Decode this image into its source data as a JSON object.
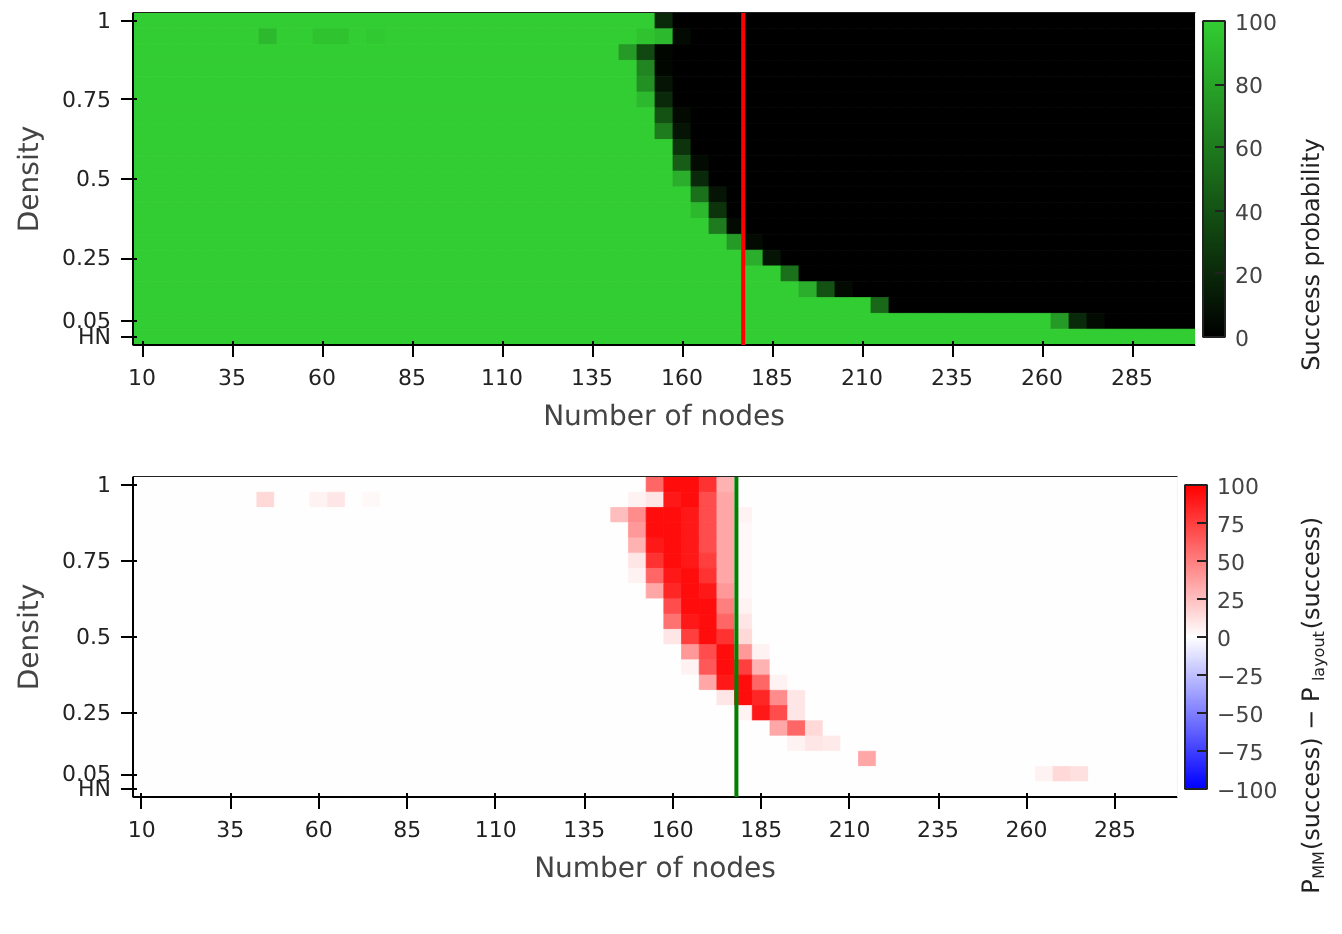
{
  "chart_data": [
    {
      "type": "heatmap",
      "xlabel": "Number of nodes",
      "ylabel": "Density",
      "clabel": "Success probability",
      "clim": [
        0,
        100
      ],
      "cticks": [
        0,
        20,
        40,
        60,
        80,
        100
      ],
      "colors": [
        "#000000",
        "#32cd32"
      ],
      "x": [
        10,
        15,
        20,
        25,
        30,
        35,
        40,
        45,
        50,
        55,
        60,
        65,
        70,
        75,
        80,
        85,
        90,
        95,
        100,
        105,
        110,
        115,
        120,
        125,
        130,
        135,
        140,
        145,
        150,
        155,
        160,
        165,
        170,
        175,
        180,
        185,
        190,
        195,
        200,
        205,
        210,
        215,
        220,
        225,
        230,
        235,
        240,
        245,
        250,
        255,
        260,
        265,
        270,
        275,
        280,
        285,
        290,
        295,
        300
      ],
      "xlim": [
        7.5,
        302.5
      ],
      "xticks": [
        10,
        35,
        60,
        85,
        110,
        135,
        160,
        185,
        210,
        235,
        260,
        285
      ],
      "y_categories": [
        "1",
        null,
        null,
        null,
        null,
        "0.75",
        null,
        null,
        null,
        null,
        "0.5",
        null,
        null,
        null,
        null,
        "0.25",
        null,
        null,
        null,
        "0.05",
        "HN"
      ],
      "ref_lines": [
        {
          "axis": "x",
          "value": 177,
          "color": "#ff0000"
        }
      ],
      "cells": [
        [
          100,
          100,
          100,
          100,
          100,
          100,
          100,
          100,
          100,
          100,
          100,
          100,
          100,
          100,
          100,
          100,
          100,
          100,
          100,
          100,
          100,
          100,
          100,
          100,
          100,
          100,
          100,
          100,
          100,
          20,
          0,
          0,
          0,
          0,
          0,
          0,
          0,
          0,
          0,
          0,
          0,
          0,
          0,
          0,
          0,
          0,
          0,
          0,
          0,
          0,
          0,
          0,
          0,
          0,
          0,
          0,
          0,
          0,
          0
        ],
        [
          100,
          100,
          100,
          100,
          100,
          100,
          100,
          90,
          100,
          100,
          95,
          95,
          100,
          98,
          100,
          100,
          100,
          100,
          100,
          100,
          100,
          100,
          100,
          100,
          100,
          100,
          100,
          100,
          95,
          90,
          5,
          0,
          0,
          0,
          0,
          0,
          0,
          0,
          0,
          0,
          0,
          0,
          0,
          0,
          0,
          0,
          0,
          0,
          0,
          0,
          0,
          0,
          0,
          0,
          0,
          0,
          0,
          0,
          0
        ],
        [
          100,
          100,
          100,
          100,
          100,
          100,
          100,
          100,
          100,
          100,
          100,
          100,
          100,
          100,
          100,
          100,
          100,
          100,
          100,
          100,
          100,
          100,
          100,
          100,
          100,
          100,
          100,
          75,
          35,
          3,
          0,
          0,
          0,
          0,
          0,
          0,
          0,
          0,
          0,
          0,
          0,
          0,
          0,
          0,
          0,
          0,
          0,
          0,
          0,
          0,
          0,
          0,
          0,
          0,
          0,
          0,
          0,
          0,
          0
        ],
        [
          100,
          100,
          100,
          100,
          100,
          100,
          100,
          100,
          100,
          100,
          100,
          100,
          100,
          100,
          100,
          100,
          100,
          100,
          100,
          100,
          100,
          100,
          100,
          100,
          100,
          100,
          100,
          100,
          65,
          3,
          0,
          0,
          0,
          0,
          0,
          0,
          0,
          0,
          0,
          0,
          0,
          0,
          0,
          0,
          0,
          0,
          0,
          0,
          0,
          0,
          0,
          0,
          0,
          0,
          0,
          0,
          0,
          0,
          0
        ],
        [
          100,
          100,
          100,
          100,
          100,
          100,
          100,
          100,
          100,
          100,
          100,
          100,
          100,
          100,
          100,
          100,
          100,
          100,
          100,
          100,
          100,
          100,
          100,
          100,
          100,
          100,
          100,
          100,
          70,
          10,
          0,
          0,
          0,
          0,
          0,
          0,
          0,
          0,
          0,
          0,
          0,
          0,
          0,
          0,
          0,
          0,
          0,
          0,
          0,
          0,
          0,
          0,
          0,
          0,
          0,
          0,
          0,
          0,
          0
        ],
        [
          100,
          100,
          100,
          100,
          100,
          100,
          100,
          100,
          100,
          100,
          100,
          100,
          100,
          100,
          100,
          100,
          100,
          100,
          100,
          100,
          100,
          100,
          100,
          100,
          100,
          100,
          100,
          100,
          90,
          20,
          0,
          0,
          0,
          0,
          0,
          0,
          0,
          0,
          0,
          0,
          0,
          0,
          0,
          0,
          0,
          0,
          0,
          0,
          0,
          0,
          0,
          0,
          0,
          0,
          0,
          0,
          0,
          0,
          0
        ],
        [
          100,
          100,
          100,
          100,
          100,
          100,
          100,
          100,
          100,
          100,
          100,
          100,
          100,
          100,
          100,
          100,
          100,
          100,
          100,
          100,
          100,
          100,
          100,
          100,
          100,
          100,
          100,
          100,
          100,
          40,
          5,
          0,
          0,
          0,
          0,
          0,
          0,
          0,
          0,
          0,
          0,
          0,
          0,
          0,
          0,
          0,
          0,
          0,
          0,
          0,
          0,
          0,
          0,
          0,
          0,
          0,
          0,
          0,
          0
        ],
        [
          100,
          100,
          100,
          100,
          100,
          100,
          100,
          100,
          100,
          100,
          100,
          100,
          100,
          100,
          100,
          100,
          100,
          100,
          100,
          100,
          100,
          100,
          100,
          100,
          100,
          100,
          100,
          100,
          100,
          60,
          10,
          0,
          0,
          0,
          0,
          0,
          0,
          0,
          0,
          0,
          0,
          0,
          0,
          0,
          0,
          0,
          0,
          0,
          0,
          0,
          0,
          0,
          0,
          0,
          0,
          0,
          0,
          0,
          0
        ],
        [
          100,
          100,
          100,
          100,
          100,
          100,
          100,
          100,
          100,
          100,
          100,
          100,
          100,
          100,
          100,
          100,
          100,
          100,
          100,
          100,
          100,
          100,
          100,
          100,
          100,
          100,
          100,
          100,
          100,
          100,
          25,
          0,
          0,
          0,
          0,
          0,
          0,
          0,
          0,
          0,
          0,
          0,
          0,
          0,
          0,
          0,
          0,
          0,
          0,
          0,
          0,
          0,
          0,
          0,
          0,
          0,
          0,
          0,
          0
        ],
        [
          100,
          100,
          100,
          100,
          100,
          100,
          100,
          100,
          100,
          100,
          100,
          100,
          100,
          100,
          100,
          100,
          100,
          100,
          100,
          100,
          100,
          100,
          100,
          100,
          100,
          100,
          100,
          100,
          100,
          100,
          45,
          5,
          0,
          0,
          0,
          0,
          0,
          0,
          0,
          0,
          0,
          0,
          0,
          0,
          0,
          0,
          0,
          0,
          0,
          0,
          0,
          0,
          0,
          0,
          0,
          0,
          0,
          0,
          0
        ],
        [
          100,
          100,
          100,
          100,
          100,
          100,
          100,
          100,
          100,
          100,
          100,
          100,
          100,
          100,
          100,
          100,
          100,
          100,
          100,
          100,
          100,
          100,
          100,
          100,
          100,
          100,
          100,
          100,
          100,
          100,
          85,
          20,
          0,
          0,
          0,
          0,
          0,
          0,
          0,
          0,
          0,
          0,
          0,
          0,
          0,
          0,
          0,
          0,
          0,
          0,
          0,
          0,
          0,
          0,
          0,
          0,
          0,
          0,
          0
        ],
        [
          100,
          100,
          100,
          100,
          100,
          100,
          100,
          100,
          100,
          100,
          100,
          100,
          100,
          100,
          100,
          100,
          100,
          100,
          100,
          100,
          100,
          100,
          100,
          100,
          100,
          100,
          100,
          100,
          100,
          100,
          100,
          55,
          10,
          0,
          0,
          0,
          0,
          0,
          0,
          0,
          0,
          0,
          0,
          0,
          0,
          0,
          0,
          0,
          0,
          0,
          0,
          0,
          0,
          0,
          0,
          0,
          0,
          0,
          0
        ],
        [
          100,
          100,
          100,
          100,
          100,
          100,
          100,
          100,
          100,
          100,
          100,
          100,
          100,
          100,
          100,
          100,
          100,
          100,
          100,
          100,
          100,
          100,
          100,
          100,
          100,
          100,
          100,
          100,
          100,
          100,
          100,
          90,
          25,
          0,
          0,
          0,
          0,
          0,
          0,
          0,
          0,
          0,
          0,
          0,
          0,
          0,
          0,
          0,
          0,
          0,
          0,
          0,
          0,
          0,
          0,
          0,
          0,
          0,
          0
        ],
        [
          100,
          100,
          100,
          100,
          100,
          100,
          100,
          100,
          100,
          100,
          100,
          100,
          100,
          100,
          100,
          100,
          100,
          100,
          100,
          100,
          100,
          100,
          100,
          100,
          100,
          100,
          100,
          100,
          100,
          100,
          100,
          100,
          60,
          5,
          0,
          0,
          0,
          0,
          0,
          0,
          0,
          0,
          0,
          0,
          0,
          0,
          0,
          0,
          0,
          0,
          0,
          0,
          0,
          0,
          0,
          0,
          0,
          0,
          0
        ],
        [
          100,
          100,
          100,
          100,
          100,
          100,
          100,
          100,
          100,
          100,
          100,
          100,
          100,
          100,
          100,
          100,
          100,
          100,
          100,
          100,
          100,
          100,
          100,
          100,
          100,
          100,
          100,
          100,
          100,
          100,
          100,
          100,
          100,
          75,
          5,
          0,
          0,
          0,
          0,
          0,
          0,
          0,
          0,
          0,
          0,
          0,
          0,
          0,
          0,
          0,
          0,
          0,
          0,
          0,
          0,
          0,
          0,
          0,
          0
        ],
        [
          100,
          100,
          100,
          100,
          100,
          100,
          100,
          100,
          100,
          100,
          100,
          100,
          100,
          100,
          100,
          100,
          100,
          100,
          100,
          100,
          100,
          100,
          100,
          100,
          100,
          100,
          100,
          100,
          100,
          100,
          100,
          100,
          100,
          100,
          85,
          10,
          0,
          0,
          0,
          0,
          0,
          0,
          0,
          0,
          0,
          0,
          0,
          0,
          0,
          0,
          0,
          0,
          0,
          0,
          0,
          0,
          0,
          0,
          0
        ],
        [
          100,
          100,
          100,
          100,
          100,
          100,
          100,
          100,
          100,
          100,
          100,
          100,
          100,
          100,
          100,
          100,
          100,
          100,
          100,
          100,
          100,
          100,
          100,
          100,
          100,
          100,
          100,
          100,
          100,
          100,
          100,
          100,
          100,
          100,
          100,
          100,
          55,
          0,
          0,
          0,
          0,
          0,
          0,
          0,
          0,
          0,
          0,
          0,
          0,
          0,
          0,
          0,
          0,
          0,
          0,
          0,
          0,
          0,
          0
        ],
        [
          100,
          100,
          100,
          100,
          100,
          100,
          100,
          100,
          100,
          100,
          100,
          100,
          100,
          100,
          100,
          100,
          100,
          100,
          100,
          100,
          100,
          100,
          100,
          100,
          100,
          100,
          100,
          100,
          100,
          100,
          100,
          100,
          100,
          100,
          100,
          100,
          100,
          85,
          40,
          5,
          0,
          0,
          0,
          0,
          0,
          0,
          0,
          0,
          0,
          0,
          0,
          0,
          0,
          0,
          0,
          0,
          0,
          0,
          0
        ],
        [
          100,
          100,
          100,
          100,
          100,
          100,
          100,
          100,
          100,
          100,
          100,
          100,
          100,
          100,
          100,
          100,
          100,
          100,
          100,
          100,
          100,
          100,
          100,
          100,
          100,
          100,
          100,
          100,
          100,
          100,
          100,
          100,
          100,
          100,
          100,
          100,
          100,
          100,
          100,
          100,
          100,
          50,
          0,
          0,
          0,
          0,
          0,
          0,
          0,
          0,
          0,
          0,
          0,
          0,
          0,
          0,
          0,
          0,
          0
        ],
        [
          100,
          100,
          100,
          100,
          100,
          100,
          100,
          100,
          100,
          100,
          100,
          100,
          100,
          100,
          100,
          100,
          100,
          100,
          100,
          100,
          100,
          100,
          100,
          100,
          100,
          100,
          100,
          100,
          100,
          100,
          100,
          100,
          100,
          100,
          100,
          100,
          100,
          100,
          100,
          100,
          100,
          100,
          100,
          100,
          100,
          100,
          100,
          100,
          100,
          100,
          100,
          75,
          20,
          5,
          0,
          0,
          0,
          0,
          0
        ],
        [
          100,
          100,
          100,
          100,
          100,
          100,
          100,
          100,
          100,
          100,
          100,
          100,
          100,
          100,
          100,
          100,
          100,
          100,
          100,
          100,
          100,
          100,
          100,
          100,
          100,
          100,
          100,
          100,
          100,
          100,
          100,
          100,
          100,
          100,
          100,
          100,
          100,
          100,
          100,
          100,
          100,
          100,
          100,
          100,
          100,
          100,
          100,
          100,
          100,
          100,
          100,
          100,
          100,
          100,
          100,
          100,
          100,
          100,
          100
        ]
      ]
    },
    {
      "type": "heatmap",
      "xlabel": "Number of nodes",
      "ylabel": "Density",
      "clabel": "P$_{MM}$(success) − P$_{layout}$(success)",
      "clim": [
        -100,
        100
      ],
      "cticks": [
        -100,
        -75,
        -50,
        -25,
        0,
        25,
        50,
        75,
        100
      ],
      "colors": [
        "#0000ff",
        "#ffffff",
        "#ff0000"
      ],
      "x": [
        10,
        15,
        20,
        25,
        30,
        35,
        40,
        45,
        50,
        55,
        60,
        65,
        70,
        75,
        80,
        85,
        90,
        95,
        100,
        105,
        110,
        115,
        120,
        125,
        130,
        135,
        140,
        145,
        150,
        155,
        160,
        165,
        170,
        175,
        180,
        185,
        190,
        195,
        200,
        205,
        210,
        215,
        220,
        225,
        230,
        235,
        240,
        245,
        250,
        255,
        260,
        265,
        270,
        275,
        280,
        285,
        290,
        295,
        300
      ],
      "xlim": [
        7.5,
        302.5
      ],
      "xticks": [
        10,
        35,
        60,
        85,
        110,
        135,
        160,
        185,
        210,
        235,
        260,
        285
      ],
      "y_categories": [
        "1",
        null,
        null,
        null,
        null,
        "0.75",
        null,
        null,
        null,
        null,
        "0.5",
        null,
        null,
        null,
        null,
        "0.25",
        null,
        null,
        null,
        "0.05",
        "HN"
      ],
      "ref_lines": [
        {
          "axis": "x",
          "value": 178,
          "color": "#008000"
        }
      ],
      "cells": [
        [
          0,
          0,
          0,
          0,
          0,
          0,
          0,
          0,
          0,
          0,
          0,
          0,
          0,
          0,
          0,
          0,
          0,
          0,
          0,
          0,
          0,
          0,
          0,
          0,
          0,
          0,
          0,
          0,
          0,
          60,
          95,
          95,
          80,
          30,
          0,
          0,
          0,
          0,
          0,
          0,
          0,
          0,
          0,
          0,
          0,
          0,
          0,
          0,
          0,
          0,
          0,
          0,
          0,
          0,
          0,
          0,
          0,
          0,
          0
        ],
        [
          0,
          0,
          0,
          0,
          0,
          0,
          0,
          15,
          0,
          0,
          5,
          10,
          0,
          3,
          0,
          0,
          0,
          0,
          0,
          0,
          0,
          0,
          0,
          0,
          0,
          0,
          0,
          0,
          5,
          10,
          90,
          95,
          70,
          35,
          0,
          0,
          0,
          0,
          0,
          0,
          0,
          0,
          0,
          0,
          0,
          0,
          0,
          0,
          0,
          0,
          0,
          0,
          0,
          0,
          0,
          0,
          0,
          0,
          0
        ],
        [
          0,
          0,
          0,
          0,
          0,
          0,
          0,
          0,
          0,
          0,
          0,
          0,
          0,
          0,
          0,
          0,
          0,
          0,
          0,
          0,
          0,
          0,
          0,
          0,
          0,
          0,
          0,
          25,
          45,
          95,
          95,
          90,
          70,
          35,
          5,
          0,
          0,
          0,
          0,
          0,
          0,
          0,
          0,
          0,
          0,
          0,
          0,
          0,
          0,
          0,
          0,
          0,
          0,
          0,
          0,
          0,
          0,
          0,
          0
        ],
        [
          0,
          0,
          0,
          0,
          0,
          0,
          0,
          0,
          0,
          0,
          0,
          0,
          0,
          0,
          0,
          0,
          0,
          0,
          0,
          0,
          0,
          0,
          0,
          0,
          0,
          0,
          0,
          0,
          40,
          95,
          95,
          90,
          70,
          35,
          3,
          0,
          0,
          0,
          0,
          0,
          0,
          0,
          0,
          0,
          0,
          0,
          0,
          0,
          0,
          0,
          0,
          0,
          0,
          0,
          0,
          0,
          0,
          0,
          0
        ],
        [
          0,
          0,
          0,
          0,
          0,
          0,
          0,
          0,
          0,
          0,
          0,
          0,
          0,
          0,
          0,
          0,
          0,
          0,
          0,
          0,
          0,
          0,
          0,
          0,
          0,
          0,
          0,
          0,
          30,
          90,
          95,
          90,
          70,
          35,
          3,
          0,
          0,
          0,
          0,
          0,
          0,
          0,
          0,
          0,
          0,
          0,
          0,
          0,
          0,
          0,
          0,
          0,
          0,
          0,
          0,
          0,
          0,
          0,
          0
        ],
        [
          0,
          0,
          0,
          0,
          0,
          0,
          0,
          0,
          0,
          0,
          0,
          0,
          0,
          0,
          0,
          0,
          0,
          0,
          0,
          0,
          0,
          0,
          0,
          0,
          0,
          0,
          0,
          0,
          10,
          80,
          95,
          90,
          75,
          35,
          3,
          0,
          0,
          0,
          0,
          0,
          0,
          0,
          0,
          0,
          0,
          0,
          0,
          0,
          0,
          0,
          0,
          0,
          0,
          0,
          0,
          0,
          0,
          0,
          0
        ],
        [
          0,
          0,
          0,
          0,
          0,
          0,
          0,
          0,
          0,
          0,
          0,
          0,
          0,
          0,
          0,
          0,
          0,
          0,
          0,
          0,
          0,
          0,
          0,
          0,
          0,
          0,
          0,
          0,
          5,
          60,
          90,
          95,
          80,
          35,
          3,
          0,
          0,
          0,
          0,
          0,
          0,
          0,
          0,
          0,
          0,
          0,
          0,
          0,
          0,
          0,
          0,
          0,
          0,
          0,
          0,
          0,
          0,
          0,
          0
        ],
        [
          0,
          0,
          0,
          0,
          0,
          0,
          0,
          0,
          0,
          0,
          0,
          0,
          0,
          0,
          0,
          0,
          0,
          0,
          0,
          0,
          0,
          0,
          0,
          0,
          0,
          0,
          0,
          0,
          0,
          35,
          85,
          95,
          90,
          40,
          3,
          0,
          0,
          0,
          0,
          0,
          0,
          0,
          0,
          0,
          0,
          0,
          0,
          0,
          0,
          0,
          0,
          0,
          0,
          0,
          0,
          0,
          0,
          0,
          0
        ],
        [
          0,
          0,
          0,
          0,
          0,
          0,
          0,
          0,
          0,
          0,
          0,
          0,
          0,
          0,
          0,
          0,
          0,
          0,
          0,
          0,
          0,
          0,
          0,
          0,
          0,
          0,
          0,
          0,
          0,
          0,
          70,
          95,
          95,
          50,
          5,
          0,
          0,
          0,
          0,
          0,
          0,
          0,
          0,
          0,
          0,
          0,
          0,
          0,
          0,
          0,
          0,
          0,
          0,
          0,
          0,
          0,
          0,
          0,
          0
        ],
        [
          0,
          0,
          0,
          0,
          0,
          0,
          0,
          0,
          0,
          0,
          0,
          0,
          0,
          0,
          0,
          0,
          0,
          0,
          0,
          0,
          0,
          0,
          0,
          0,
          0,
          0,
          0,
          0,
          0,
          0,
          55,
          90,
          95,
          60,
          10,
          0,
          0,
          0,
          0,
          0,
          0,
          0,
          0,
          0,
          0,
          0,
          0,
          0,
          0,
          0,
          0,
          0,
          0,
          0,
          0,
          0,
          0,
          0,
          0
        ],
        [
          0,
          0,
          0,
          0,
          0,
          0,
          0,
          0,
          0,
          0,
          0,
          0,
          0,
          0,
          0,
          0,
          0,
          0,
          0,
          0,
          0,
          0,
          0,
          0,
          0,
          0,
          0,
          0,
          0,
          0,
          10,
          75,
          95,
          80,
          15,
          0,
          0,
          0,
          0,
          0,
          0,
          0,
          0,
          0,
          0,
          0,
          0,
          0,
          0,
          0,
          0,
          0,
          0,
          0,
          0,
          0,
          0,
          0,
          0
        ],
        [
          0,
          0,
          0,
          0,
          0,
          0,
          0,
          0,
          0,
          0,
          0,
          0,
          0,
          0,
          0,
          0,
          0,
          0,
          0,
          0,
          0,
          0,
          0,
          0,
          0,
          0,
          0,
          0,
          0,
          0,
          0,
          40,
          70,
          95,
          40,
          5,
          0,
          0,
          0,
          0,
          0,
          0,
          0,
          0,
          0,
          0,
          0,
          0,
          0,
          0,
          0,
          0,
          0,
          0,
          0,
          0,
          0,
          0,
          0
        ],
        [
          0,
          0,
          0,
          0,
          0,
          0,
          0,
          0,
          0,
          0,
          0,
          0,
          0,
          0,
          0,
          0,
          0,
          0,
          0,
          0,
          0,
          0,
          0,
          0,
          0,
          0,
          0,
          0,
          0,
          0,
          0,
          5,
          65,
          95,
          75,
          30,
          0,
          0,
          0,
          0,
          0,
          0,
          0,
          0,
          0,
          0,
          0,
          0,
          0,
          0,
          0,
          0,
          0,
          0,
          0,
          0,
          0,
          0,
          0
        ],
        [
          0,
          0,
          0,
          0,
          0,
          0,
          0,
          0,
          0,
          0,
          0,
          0,
          0,
          0,
          0,
          0,
          0,
          0,
          0,
          0,
          0,
          0,
          0,
          0,
          0,
          0,
          0,
          0,
          0,
          0,
          0,
          0,
          35,
          90,
          95,
          60,
          5,
          0,
          0,
          0,
          0,
          0,
          0,
          0,
          0,
          0,
          0,
          0,
          0,
          0,
          0,
          0,
          0,
          0,
          0,
          0,
          0,
          0,
          0
        ],
        [
          0,
          0,
          0,
          0,
          0,
          0,
          0,
          0,
          0,
          0,
          0,
          0,
          0,
          0,
          0,
          0,
          0,
          0,
          0,
          0,
          0,
          0,
          0,
          0,
          0,
          0,
          0,
          0,
          0,
          0,
          0,
          0,
          0,
          10,
          95,
          85,
          45,
          10,
          0,
          0,
          0,
          0,
          0,
          0,
          0,
          0,
          0,
          0,
          0,
          0,
          0,
          0,
          0,
          0,
          0,
          0,
          0,
          0,
          0
        ],
        [
          0,
          0,
          0,
          0,
          0,
          0,
          0,
          0,
          0,
          0,
          0,
          0,
          0,
          0,
          0,
          0,
          0,
          0,
          0,
          0,
          0,
          0,
          0,
          0,
          0,
          0,
          0,
          0,
          0,
          0,
          0,
          0,
          0,
          0,
          5,
          90,
          70,
          10,
          0,
          0,
          0,
          0,
          0,
          0,
          0,
          0,
          0,
          0,
          0,
          0,
          0,
          0,
          0,
          0,
          0,
          0,
          0,
          0,
          0
        ],
        [
          0,
          0,
          0,
          0,
          0,
          0,
          0,
          0,
          0,
          0,
          0,
          0,
          0,
          0,
          0,
          0,
          0,
          0,
          0,
          0,
          0,
          0,
          0,
          0,
          0,
          0,
          0,
          0,
          0,
          0,
          0,
          0,
          0,
          0,
          0,
          0,
          35,
          60,
          15,
          0,
          0,
          0,
          0,
          0,
          0,
          0,
          0,
          0,
          0,
          0,
          0,
          0,
          0,
          0,
          0,
          0,
          0,
          0,
          0
        ],
        [
          0,
          0,
          0,
          0,
          0,
          0,
          0,
          0,
          0,
          0,
          0,
          0,
          0,
          0,
          0,
          0,
          0,
          0,
          0,
          0,
          0,
          0,
          0,
          0,
          0,
          0,
          0,
          0,
          0,
          0,
          0,
          0,
          0,
          0,
          0,
          0,
          0,
          5,
          10,
          8,
          0,
          0,
          0,
          0,
          0,
          0,
          0,
          0,
          0,
          0,
          0,
          0,
          0,
          0,
          0,
          0,
          0,
          0,
          0
        ],
        [
          0,
          0,
          0,
          0,
          0,
          0,
          0,
          0,
          0,
          0,
          0,
          0,
          0,
          0,
          0,
          0,
          0,
          0,
          0,
          0,
          0,
          0,
          0,
          0,
          0,
          0,
          0,
          0,
          0,
          0,
          0,
          0,
          0,
          0,
          0,
          0,
          0,
          0,
          0,
          0,
          0,
          35,
          0,
          0,
          0,
          0,
          0,
          0,
          0,
          0,
          0,
          0,
          0,
          0,
          0,
          0,
          0,
          0,
          0
        ],
        [
          0,
          0,
          0,
          0,
          0,
          0,
          0,
          0,
          0,
          0,
          0,
          0,
          0,
          0,
          0,
          0,
          0,
          0,
          0,
          0,
          0,
          0,
          0,
          0,
          0,
          0,
          0,
          0,
          0,
          0,
          0,
          0,
          0,
          0,
          0,
          0,
          0,
          0,
          0,
          0,
          0,
          0,
          0,
          0,
          0,
          0,
          0,
          0,
          0,
          0,
          0,
          5,
          15,
          12,
          0,
          0,
          0,
          0,
          0
        ],
        [
          0,
          0,
          0,
          0,
          0,
          0,
          0,
          0,
          0,
          0,
          0,
          0,
          0,
          0,
          0,
          0,
          0,
          0,
          0,
          0,
          0,
          0,
          0,
          0,
          0,
          0,
          0,
          0,
          0,
          0,
          0,
          0,
          0,
          0,
          0,
          0,
          0,
          0,
          0,
          0,
          0,
          0,
          0,
          0,
          0,
          0,
          0,
          0,
          0,
          0,
          0,
          0,
          0,
          0,
          0,
          0,
          0,
          0,
          0
        ]
      ]
    }
  ]
}
